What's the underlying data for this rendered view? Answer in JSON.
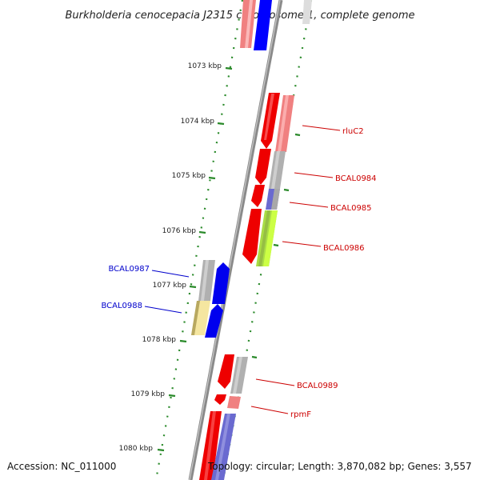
{
  "title": "Burkholderia cenocepacia J2315 chromosome 1, complete genome",
  "accession": "Accession: NC_011000",
  "summary": "Topology: circular; Length: 3,870,082 bp; Genes: 3,557",
  "colors": {
    "forward_label": "#cc0000",
    "reverse_label": "#0000cc",
    "backbone": "#8a8a8a",
    "ticks": "#2a8a2a"
  },
  "tick_labels": [
    "1073 kbp",
    "1074 kbp",
    "1075 kbp",
    "1076 kbp",
    "1077 kbp",
    "1078 kbp",
    "1079 kbp",
    "1080 kbp"
  ],
  "genes": [
    {
      "name": "rluC2",
      "strand": "forward"
    },
    {
      "name": "BCAL0984",
      "strand": "forward"
    },
    {
      "name": "BCAL0985",
      "strand": "forward"
    },
    {
      "name": "BCAL0986",
      "strand": "forward"
    },
    {
      "name": "BCAL0987",
      "strand": "reverse"
    },
    {
      "name": "BCAL0988",
      "strand": "reverse"
    },
    {
      "name": "BCAL0989",
      "strand": "forward"
    },
    {
      "name": "rpmF",
      "strand": "forward"
    }
  ]
}
